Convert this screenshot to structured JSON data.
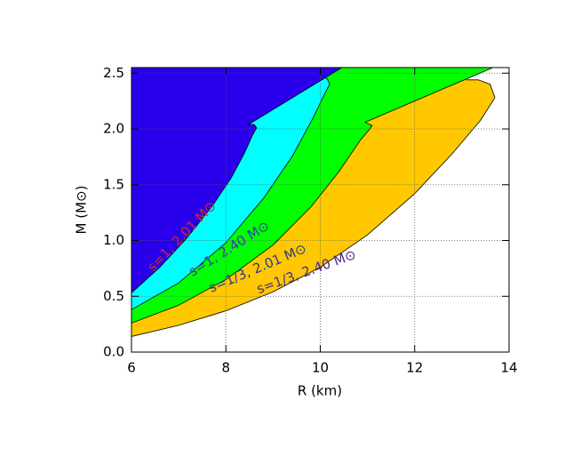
{
  "chart_data": {
    "type": "area",
    "xlabel": "R (km)",
    "ylabel": "M (M⊙)",
    "xlim": [
      6,
      14
    ],
    "ylim": [
      0,
      2.55
    ],
    "xticks": [
      6,
      8,
      10,
      12,
      14
    ],
    "yticks": [
      {
        "value": 0,
        "label": "0.0"
      },
      0.5,
      {
        "value": 1,
        "label": "1.0"
      },
      1.5,
      {
        "value": 2,
        "label": "2.0"
      },
      2.5
    ],
    "grid": true,
    "series": [
      {
        "name": "s=1/3, 2.40 M⊙",
        "color": "#ffc800",
        "label_color": "#4a2a8a",
        "x": [
          6,
          7,
          8,
          9,
          10,
          11,
          12,
          12.8,
          13.4,
          13.7,
          13.6,
          13.35,
          13.1
        ],
        "y": [
          0.14,
          0.24,
          0.37,
          0.54,
          0.76,
          1.05,
          1.42,
          1.78,
          2.08,
          2.28,
          2.4,
          2.44,
          2.44
        ]
      },
      {
        "name": "s=1/3, 2.01 M⊙",
        "color": "#00ff00",
        "label_color": "#2a3a8a",
        "x": [
          6,
          7,
          8,
          9,
          9.8,
          10.4,
          10.85,
          11.05,
          11.1,
          10.95,
          13.66
        ],
        "y": [
          0.26,
          0.42,
          0.65,
          0.96,
          1.3,
          1.62,
          1.9,
          2.0,
          2.03,
          2.06,
          2.55
        ]
      },
      {
        "name": "s=1, 2.40 M⊙",
        "color": "#00ffff",
        "label_color": "#3a3aa8",
        "x": [
          6,
          7,
          8,
          8.8,
          9.4,
          9.85,
          10.1,
          10.2,
          10.15,
          10.07
        ],
        "y": [
          0.38,
          0.62,
          0.98,
          1.38,
          1.75,
          2.1,
          2.32,
          2.4,
          2.45,
          2.46
        ]
      },
      {
        "name": "s=1, 2.01 M⊙",
        "color": "#2a00ec",
        "label_color": "#d02828",
        "x": [
          6,
          6.6,
          7.17,
          7.73,
          8.11,
          8.39,
          8.56,
          8.65,
          8.6,
          8.48,
          10.46
        ],
        "y": [
          0.53,
          0.76,
          1.02,
          1.32,
          1.56,
          1.78,
          1.94,
          2.01,
          2.04,
          2.04,
          2.55
        ]
      }
    ]
  }
}
